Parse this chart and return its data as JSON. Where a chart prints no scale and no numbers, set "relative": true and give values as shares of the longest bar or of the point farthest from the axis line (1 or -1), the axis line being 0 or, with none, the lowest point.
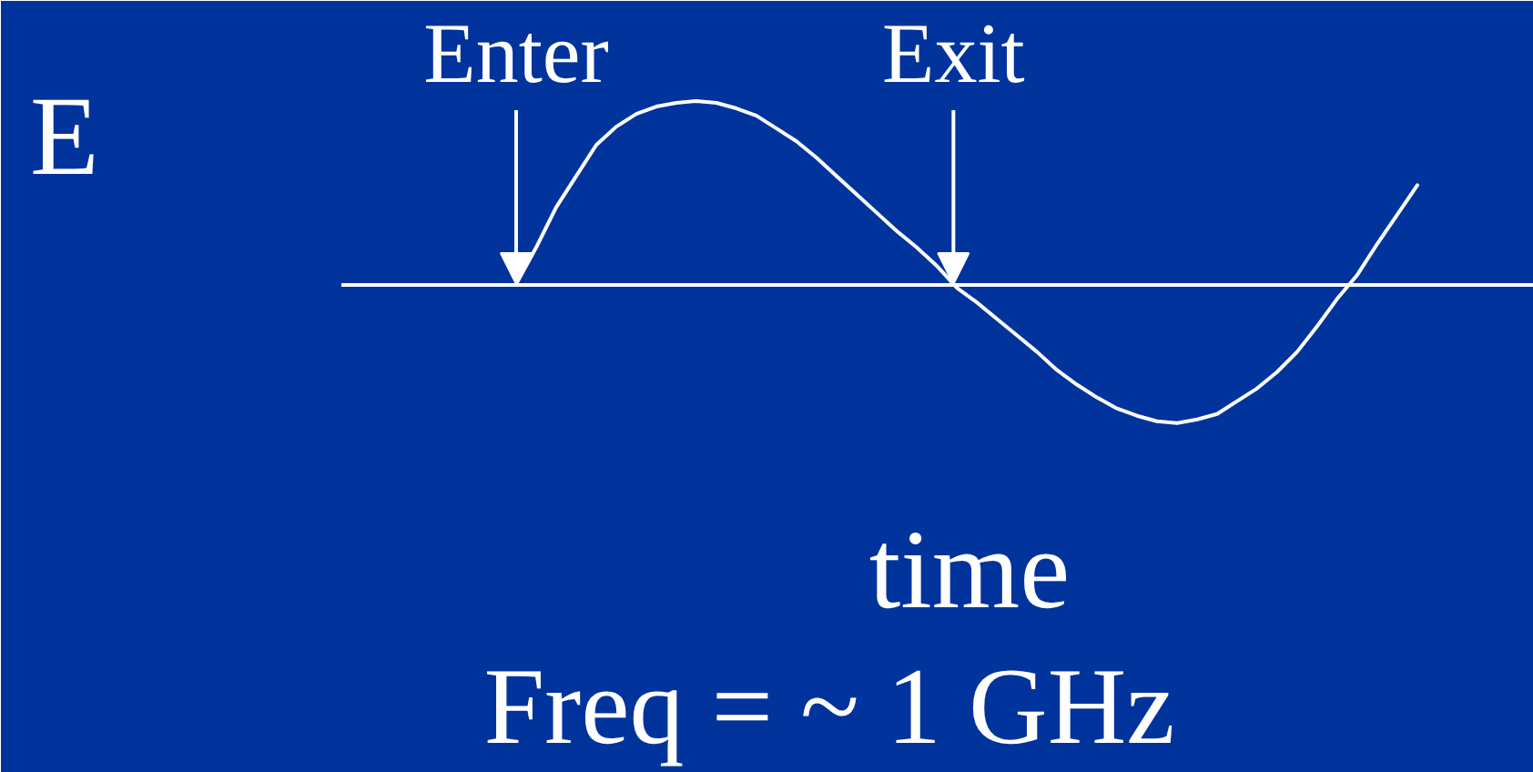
{
  "chart_data": {
    "type": "line",
    "relative": true,
    "ylabel": "E",
    "xlabel": "time",
    "categories": [
      null,
      null,
      null,
      null,
      null,
      null,
      null,
      null,
      null,
      null,
      null,
      null,
      null,
      null,
      null,
      null,
      null,
      null,
      null,
      null,
      null,
      null,
      null,
      null,
      null,
      null,
      null,
      null,
      null,
      null,
      null,
      null,
      null,
      null,
      null,
      null,
      null,
      null,
      null,
      null,
      null,
      null,
      null,
      null,
      null,
      null
    ],
    "series": [
      {
        "color": "#ffffff",
        "values": [
          0,
          0.2,
          0.42,
          0.59,
          0.76,
          0.86,
          0.93,
          0.97,
          0.99,
          1,
          0.99,
          0.96,
          0.92,
          0.85,
          0.78,
          0.69,
          0.59,
          0.49,
          0.39,
          0.29,
          0.2,
          0.1,
          -0.02,
          -0.1,
          -0.19,
          -0.28,
          -0.37,
          -0.47,
          -0.55,
          -0.62,
          -0.68,
          -0.72,
          -0.75,
          -0.76,
          -0.74,
          -0.71,
          -0.64,
          -0.57,
          -0.48,
          -0.37,
          -0.23,
          -0.08,
          0.05,
          0.22,
          0.38,
          0.54
        ]
      }
    ],
    "annotations": [
      {
        "text": "Enter",
        "y": 0
      },
      {
        "text": "Exit",
        "y": 0
      },
      "Freq = ~ 1 GHz"
    ]
  }
}
